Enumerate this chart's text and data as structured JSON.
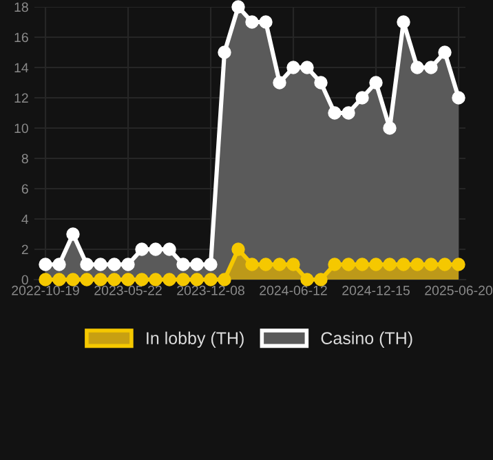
{
  "chart_data": {
    "type": "area",
    "categories": [
      "2022-10-19",
      null,
      null,
      null,
      null,
      null,
      "2023-05-22",
      null,
      null,
      null,
      null,
      null,
      "2023-12-08",
      null,
      null,
      null,
      null,
      null,
      "2024-06-12",
      null,
      null,
      null,
      null,
      null,
      "2024-12-15",
      null,
      null,
      null,
      null,
      null,
      "2025-06-20"
    ],
    "series": [
      {
        "name": "In lobby (TH)",
        "color": "#f5c800",
        "values": [
          0,
          0,
          0,
          0,
          0,
          0,
          0,
          0,
          0,
          0,
          0,
          0,
          0,
          0,
          2,
          1,
          1,
          1,
          1,
          0,
          0,
          1,
          1,
          1,
          1,
          1,
          1,
          1,
          1,
          1,
          1
        ]
      },
      {
        "name": "Casino (TH)",
        "color": "#ffffff",
        "values": [
          1,
          1,
          3,
          1,
          1,
          1,
          1,
          2,
          2,
          2,
          1,
          1,
          1,
          15,
          18,
          17,
          17,
          13,
          14,
          14,
          13,
          11,
          11,
          12,
          13,
          10,
          17,
          14,
          14,
          15,
          12
        ]
      }
    ],
    "ylim": [
      0,
      18
    ],
    "yticks": [
      0,
      2,
      4,
      6,
      8,
      10,
      12,
      14,
      16,
      18
    ],
    "grid": true,
    "legend": "bottom",
    "marker": "circle"
  }
}
